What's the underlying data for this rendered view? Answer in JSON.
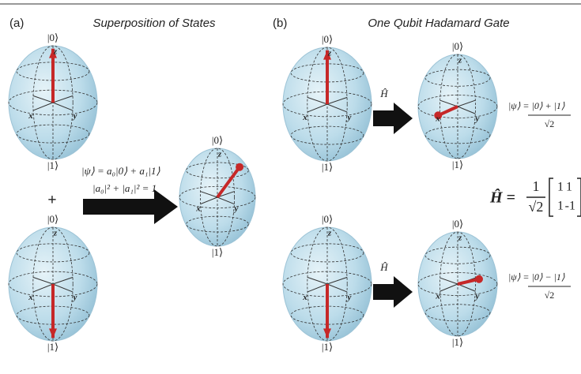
{
  "panel_a": {
    "label": "(a)",
    "title": "Superposition of States",
    "plus": "+",
    "equation": "|ψ⟩ = a₀|0⟩ + a₁|1⟩",
    "normalization": "|a₀|² + |a₁|² = 1"
  },
  "panel_b": {
    "label": "(b)",
    "title": "One Qubit Hadamard Gate",
    "gate_top": "Ĥ",
    "gate_bottom": "Ĥ",
    "state_plus": {
      "numerator": "|ψ⟩ = |0⟩ + |1⟩",
      "denominator": "√2"
    },
    "state_minus": {
      "numerator": "|ψ⟩ = |0⟩ − |1⟩",
      "denominator": "√2"
    },
    "matrix": {
      "lhs": "Ĥ =",
      "numerator": "1",
      "denominator": "√2",
      "rows": [
        [
          "1",
          "1"
        ],
        [
          "1",
          "-1"
        ]
      ]
    }
  },
  "spheres": [
    {
      "top": "|0⟩",
      "bottom": "|1⟩",
      "z": "z",
      "x": "x",
      "y": "y"
    },
    {
      "top": "|0⟩",
      "bottom": "|1⟩",
      "z": "z",
      "x": "x",
      "y": "y"
    },
    {
      "top": "|0⟩",
      "bottom": "|1⟩",
      "z": "z",
      "x": "x",
      "y": "y"
    },
    {
      "top": "|0⟩",
      "bottom": "|1⟩",
      "z": "z",
      "x": "x",
      "y": "y"
    },
    {
      "top": "|0⟩",
      "bottom": "|1⟩",
      "z": "z",
      "x": "x",
      "y": "y"
    },
    {
      "top": "|0⟩",
      "bottom": "|1⟩",
      "z": "z",
      "x": "x",
      "y": "y"
    },
    {
      "top": "|0⟩",
      "bottom": "|1⟩",
      "z": "z",
      "x": "x",
      "y": "y"
    }
  ]
}
